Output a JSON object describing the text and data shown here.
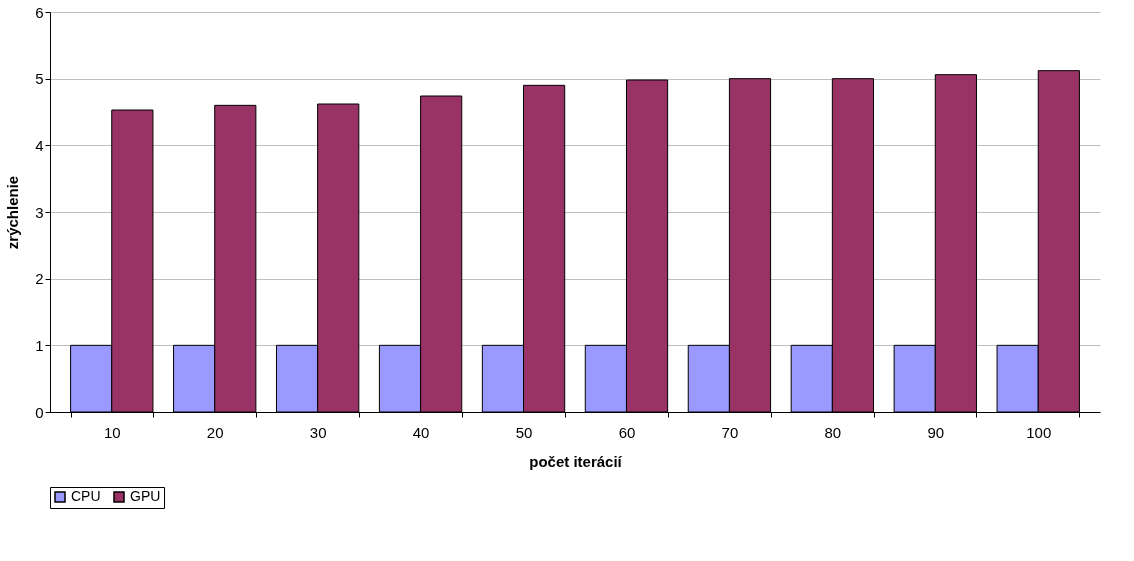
{
  "chart_data": {
    "type": "bar",
    "xlabel": "počet iterácií",
    "ylabel": "zrýchlenie",
    "categories": [
      "10",
      "20",
      "30",
      "40",
      "50",
      "60",
      "70",
      "80",
      "90",
      "100"
    ],
    "series": [
      {
        "name": "CPU",
        "color": "#9999ff",
        "values": [
          1,
          1,
          1,
          1,
          1,
          1,
          1,
          1,
          1,
          1
        ]
      },
      {
        "name": "GPU",
        "color": "#993366",
        "values": [
          4.53,
          4.6,
          4.62,
          4.74,
          4.9,
          4.98,
          5.0,
          5.0,
          5.06,
          5.12
        ]
      }
    ],
    "ylim": [
      0,
      6
    ],
    "yticks": [
      0,
      1,
      2,
      3,
      4,
      5,
      6
    ],
    "grid": "y",
    "legend": "bottom"
  }
}
